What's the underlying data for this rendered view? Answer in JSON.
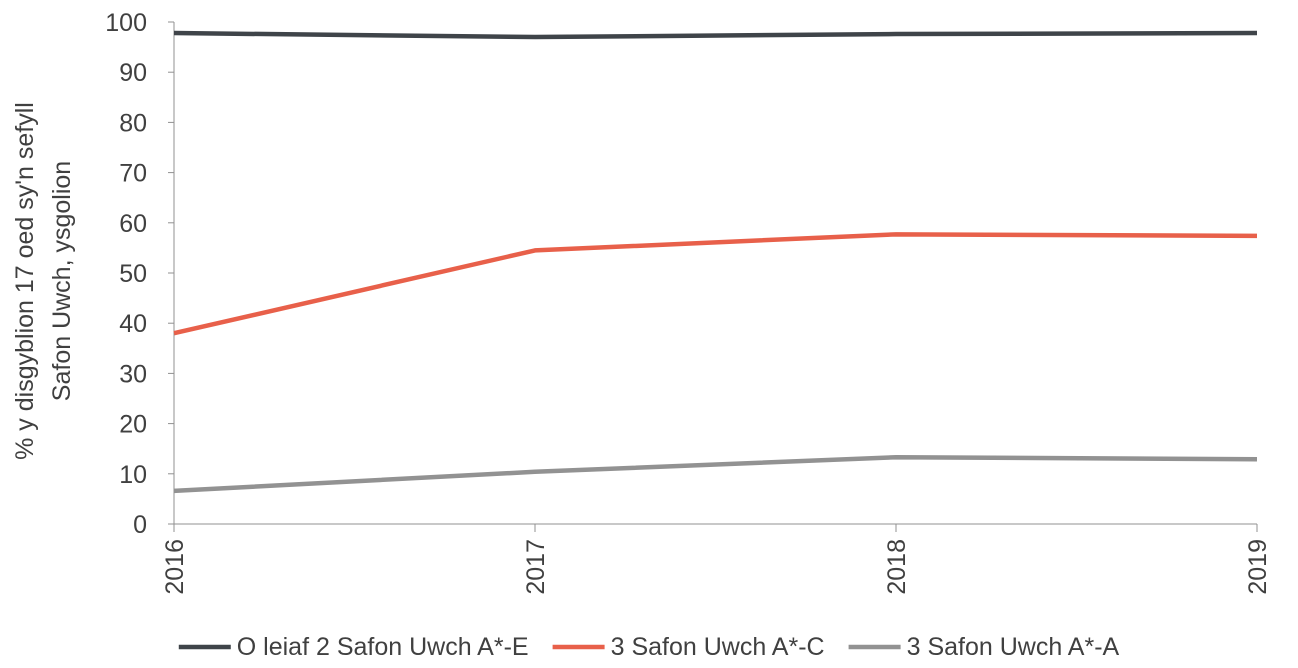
{
  "chart_data": {
    "type": "line",
    "title": "",
    "ylabel_lines": [
      "% y disgyblion 17 oed sy'n sefyll",
      "Safon Uwch, ysgolion"
    ],
    "xlabel": "",
    "categories": [
      "2016",
      "2017",
      "2018",
      "2019"
    ],
    "ylim": [
      0,
      100
    ],
    "yticks": [
      0,
      10,
      20,
      30,
      40,
      50,
      60,
      70,
      80,
      90,
      100
    ],
    "grid": false,
    "legend_position": "bottom",
    "series": [
      {
        "name": "O leiaf 2 Safon Uwch A*-E",
        "color": "#3f4449",
        "values": [
          97.8,
          97.0,
          97.6,
          97.8
        ]
      },
      {
        "name": "3 Safon Uwch A*-C",
        "color": "#e8604a",
        "values": [
          38.0,
          54.5,
          57.7,
          57.4
        ]
      },
      {
        "name": "3 Safon Uwch A*-A",
        "color": "#929292",
        "values": [
          6.6,
          10.4,
          13.3,
          12.9
        ]
      }
    ]
  }
}
